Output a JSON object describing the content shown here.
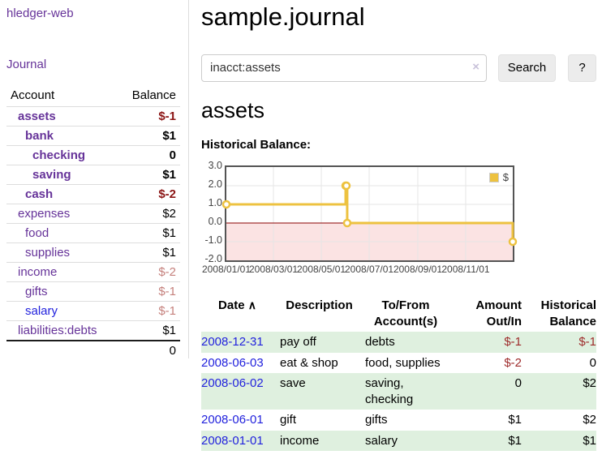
{
  "sidebar": {
    "app_title": "hledger-web",
    "journal_label": "Journal",
    "accounts": {
      "col_account": "Account",
      "col_balance": "Balance",
      "rows": [
        {
          "name": "assets",
          "depth": 1,
          "bold": true,
          "balance": "$-1",
          "balance_style": "neg-strong"
        },
        {
          "name": "bank",
          "depth": 2,
          "bold": true,
          "balance": "$1",
          "balance_style": ""
        },
        {
          "name": "checking",
          "depth": 3,
          "bold": true,
          "balance": "0",
          "balance_style": ""
        },
        {
          "name": "saving",
          "depth": 3,
          "bold": true,
          "balance": "$1",
          "balance_style": ""
        },
        {
          "name": "cash",
          "depth": 2,
          "bold": true,
          "balance": "$-2",
          "balance_style": "neg-strong"
        },
        {
          "name": "expenses",
          "depth": 1,
          "bold": false,
          "balance": "$2",
          "balance_style": ""
        },
        {
          "name": "food",
          "depth": 2,
          "bold": false,
          "balance": "$1",
          "balance_style": ""
        },
        {
          "name": "supplies",
          "depth": 2,
          "bold": false,
          "balance": "$1",
          "balance_style": ""
        },
        {
          "name": "income",
          "depth": 1,
          "bold": false,
          "balance": "$-2",
          "balance_style": "neg-light"
        },
        {
          "name": "gifts",
          "depth": 2,
          "bold": false,
          "balance": "$-1",
          "balance_style": "neg-light"
        },
        {
          "name": "salary",
          "depth": 2,
          "bold": false,
          "balance": "$-1",
          "balance_style": "neg-light",
          "name_style": "blue"
        },
        {
          "name": "liabilities:debts",
          "depth": 1,
          "bold": false,
          "balance": "$1",
          "balance_style": ""
        }
      ],
      "total": "0"
    }
  },
  "header": {
    "title": "sample.journal"
  },
  "search": {
    "value": "inacct:assets",
    "clear_icon": "×",
    "button_label": "Search",
    "help_label": "?"
  },
  "account_page": {
    "heading": "assets",
    "chart_title": "Historical Balance:"
  },
  "chart_data": {
    "type": "line",
    "step": true,
    "title": "Historical Balance:",
    "series": [
      {
        "name": "$",
        "color": "#edc240",
        "points": [
          [
            "2008-01-01",
            1
          ],
          [
            "2008-06-01",
            2
          ],
          [
            "2008-06-02",
            2
          ],
          [
            "2008-06-03",
            0
          ],
          [
            "2008-12-31",
            -1
          ]
        ]
      }
    ],
    "x_range": [
      "2008-01-01",
      "2008-12-31"
    ],
    "ylim": [
      -2,
      3
    ],
    "y_ticks": [
      3.0,
      2.0,
      1.0,
      0.0,
      -1.0,
      -2.0
    ],
    "x_ticks": [
      "2008/01/01",
      "2008/03/01",
      "2008/05/01",
      "2008/07/01",
      "2008/09/01",
      "2008/11/01"
    ],
    "grid": true,
    "legend_position": "top-right",
    "negative_fill": "#fbe3e3",
    "zero_line_color": "#8b0000"
  },
  "register": {
    "columns": [
      {
        "label": "Date",
        "align": "left"
      },
      {
        "label": "Description",
        "align": "left"
      },
      {
        "label": "To/From Account(s)",
        "align": "left"
      },
      {
        "label": "Amount Out/In",
        "align": "right"
      },
      {
        "label": "Historical Balance",
        "align": "right"
      }
    ],
    "sort_icon": "∧",
    "rows": [
      {
        "date": "2008-12-31",
        "description": "pay off",
        "accounts": "debts",
        "amount": "$-1",
        "amount_neg": true,
        "balance": "$-1",
        "balance_neg": true
      },
      {
        "date": "2008-06-03",
        "description": "eat & shop",
        "accounts": "food, supplies",
        "amount": "$-2",
        "amount_neg": true,
        "balance": "0",
        "balance_neg": false
      },
      {
        "date": "2008-06-02",
        "description": "save",
        "accounts": "saving, checking",
        "amount": "0",
        "amount_neg": false,
        "balance": "$2",
        "balance_neg": false
      },
      {
        "date": "2008-06-01",
        "description": "gift",
        "accounts": "gifts",
        "amount": "$1",
        "amount_neg": false,
        "balance": "$2",
        "balance_neg": false
      },
      {
        "date": "2008-01-01",
        "description": "income",
        "accounts": "salary",
        "amount": "$1",
        "amount_neg": false,
        "balance": "$1",
        "balance_neg": false
      }
    ]
  },
  "colors": {
    "purple": "#663399",
    "blue_link": "#2222dd",
    "neg_strong": "#8b1414",
    "neg_light": "#c5807c",
    "neg_table": "#9e2b2b",
    "row_green": "#dff0df",
    "series_gold": "#edc240"
  }
}
